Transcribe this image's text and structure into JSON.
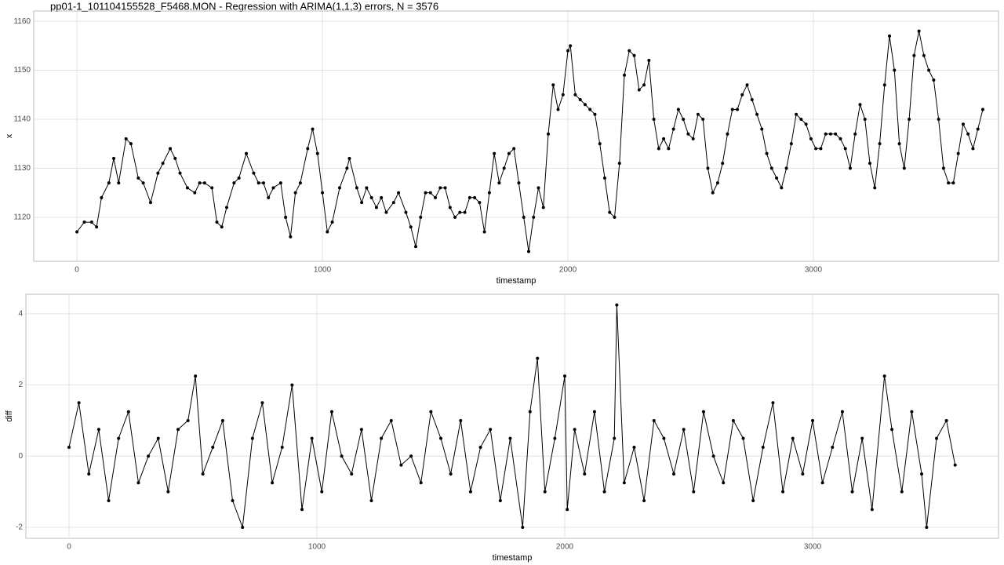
{
  "chart_data": [
    {
      "type": "line",
      "title": "pp01-1_101104155528_F5468.MON - Regression with ARIMA(1,1,3) errors, N = 3576",
      "x_label": "timestamp",
      "y_label": "x",
      "color": "#000000",
      "grid": true,
      "xlim": [
        -176,
        3754
      ],
      "ylim": [
        1111,
        1162.1
      ],
      "xticks": [
        0,
        1000,
        2000,
        3000
      ],
      "yticks": [
        1120,
        1130,
        1140,
        1150,
        1160
      ],
      "x": [
        0,
        30,
        60,
        80,
        100,
        130,
        150,
        170,
        200,
        220,
        250,
        270,
        300,
        330,
        350,
        380,
        400,
        420,
        450,
        480,
        500,
        520,
        550,
        570,
        590,
        610,
        640,
        660,
        690,
        720,
        740,
        760,
        780,
        800,
        830,
        850,
        870,
        890,
        910,
        940,
        960,
        980,
        1000,
        1020,
        1040,
        1070,
        1100,
        1110,
        1140,
        1160,
        1180,
        1200,
        1220,
        1240,
        1260,
        1290,
        1310,
        1340,
        1360,
        1380,
        1400,
        1420,
        1440,
        1460,
        1480,
        1500,
        1520,
        1540,
        1560,
        1580,
        1600,
        1620,
        1640,
        1660,
        1680,
        1700,
        1720,
        1740,
        1760,
        1780,
        1800,
        1820,
        1840,
        1860,
        1880,
        1900,
        1920,
        1940,
        1960,
        1980,
        2000,
        2010,
        2030,
        2050,
        2070,
        2090,
        2110,
        2130,
        2150,
        2170,
        2190,
        2210,
        2230,
        2250,
        2270,
        2290,
        2310,
        2330,
        2350,
        2370,
        2390,
        2410,
        2430,
        2450,
        2470,
        2490,
        2510,
        2530,
        2550,
        2570,
        2590,
        2610,
        2630,
        2650,
        2670,
        2690,
        2710,
        2730,
        2750,
        2770,
        2790,
        2810,
        2830,
        2850,
        2870,
        2890,
        2910,
        2930,
        2950,
        2970,
        2990,
        3010,
        3030,
        3050,
        3070,
        3090,
        3110,
        3130,
        3150,
        3170,
        3190,
        3210,
        3230,
        3250,
        3270,
        3290,
        3310,
        3330,
        3350,
        3370,
        3390,
        3410,
        3430,
        3450,
        3470,
        3490,
        3510,
        3530,
        3550,
        3570,
        3590,
        3610,
        3630,
        3650,
        3670,
        3690
      ],
      "values": [
        1117,
        1119,
        1119,
        1118,
        1124,
        1127,
        1132,
        1127,
        1136,
        1135,
        1128,
        1127,
        1123,
        1129,
        1131,
        1134,
        1132,
        1129,
        1126,
        1125,
        1127,
        1127,
        1126,
        1119,
        1118,
        1122,
        1127,
        1128,
        1133,
        1129,
        1127,
        1127,
        1124,
        1126,
        1127,
        1120,
        1116,
        1125,
        1127,
        1134,
        1138,
        1133,
        1125,
        1117,
        1119,
        1126,
        1130,
        1132,
        1126,
        1123,
        1126,
        1124,
        1122,
        1124,
        1121,
        1123,
        1125,
        1121,
        1118,
        1114,
        1120,
        1125,
        1125,
        1124,
        1126,
        1126,
        1122,
        1120,
        1121,
        1121,
        1124,
        1124,
        1123,
        1117,
        1125,
        1133,
        1127,
        1130,
        1133,
        1134,
        1127,
        1120,
        1113,
        1120,
        1126,
        1122,
        1137,
        1147,
        1142,
        1145,
        1154,
        1155,
        1145,
        1144,
        1143,
        1142,
        1141,
        1135,
        1128,
        1121,
        1120,
        1131,
        1149,
        1154,
        1153,
        1146,
        1147,
        1152,
        1140,
        1134,
        1136,
        1134,
        1138,
        1142,
        1140,
        1137,
        1136,
        1141,
        1140,
        1130,
        1125,
        1127,
        1131,
        1137,
        1142,
        1142,
        1145,
        1147,
        1144,
        1141,
        1138,
        1133,
        1130,
        1128,
        1126,
        1130,
        1135,
        1141,
        1140,
        1139,
        1136,
        1134,
        1134,
        1137,
        1137,
        1137,
        1136,
        1134,
        1130,
        1137,
        1143,
        1140,
        1131,
        1126,
        1135,
        1147,
        1157,
        1150,
        1135,
        1130,
        1140,
        1153,
        1158,
        1153,
        1150,
        1148,
        1140,
        1130,
        1127,
        1127,
        1133,
        1139,
        1137,
        1134,
        1138,
        1142
      ]
    },
    {
      "type": "line",
      "x_label": "timestamp",
      "y_label": "diff",
      "color": "#000000",
      "grid": true,
      "xlim": [
        -174,
        3750
      ],
      "ylim": [
        -2.31,
        4.55
      ],
      "xticks": [
        0,
        1000,
        2000,
        3000
      ],
      "yticks": [
        -2,
        0,
        2,
        4
      ],
      "x": [
        0,
        40,
        80,
        120,
        160,
        200,
        240,
        280,
        320,
        360,
        400,
        440,
        480,
        510,
        540,
        580,
        620,
        660,
        700,
        740,
        780,
        820,
        860,
        900,
        940,
        980,
        1020,
        1060,
        1100,
        1140,
        1180,
        1220,
        1260,
        1300,
        1340,
        1380,
        1420,
        1460,
        1500,
        1540,
        1580,
        1620,
        1660,
        1700,
        1740,
        1780,
        1830,
        1860,
        1890,
        1920,
        1960,
        2000,
        2010,
        2040,
        2080,
        2120,
        2160,
        2200,
        2210,
        2240,
        2280,
        2320,
        2360,
        2400,
        2440,
        2480,
        2520,
        2560,
        2600,
        2640,
        2680,
        2720,
        2760,
        2800,
        2840,
        2880,
        2920,
        2960,
        3000,
        3040,
        3080,
        3120,
        3160,
        3200,
        3240,
        3290,
        3320,
        3360,
        3400,
        3440,
        3460,
        3500,
        3540,
        3575
      ],
      "values": [
        0.25,
        1.5,
        -0.5,
        0.75,
        -1.25,
        0.5,
        1.25,
        -0.75,
        0,
        0.5,
        -1,
        0.75,
        1,
        2.25,
        -0.5,
        0.25,
        1,
        -1.25,
        -2,
        0.5,
        1.5,
        -0.75,
        0.25,
        2,
        -1.5,
        0.5,
        -1,
        1.25,
        0,
        -0.5,
        0.75,
        -1.25,
        0.5,
        1,
        -0.25,
        0,
        -0.75,
        1.25,
        0.5,
        -0.5,
        1,
        -1,
        0.25,
        0.75,
        -1.25,
        0.5,
        -2,
        1.25,
        2.75,
        -1,
        0.5,
        2.25,
        -1.5,
        0.75,
        -0.5,
        1.25,
        -1,
        0.5,
        4.25,
        -0.75,
        0.25,
        -1.25,
        1,
        0.5,
        -0.5,
        0.75,
        -1,
        1.25,
        0,
        -0.75,
        1,
        0.5,
        -1.25,
        0.25,
        1.5,
        -1,
        0.5,
        -0.5,
        1,
        -0.75,
        0.25,
        1.25,
        -1,
        0.5,
        -1.5,
        2.25,
        0.75,
        -1,
        1.25,
        -0.5,
        -2,
        0.5,
        1,
        -0.25
      ]
    }
  ]
}
